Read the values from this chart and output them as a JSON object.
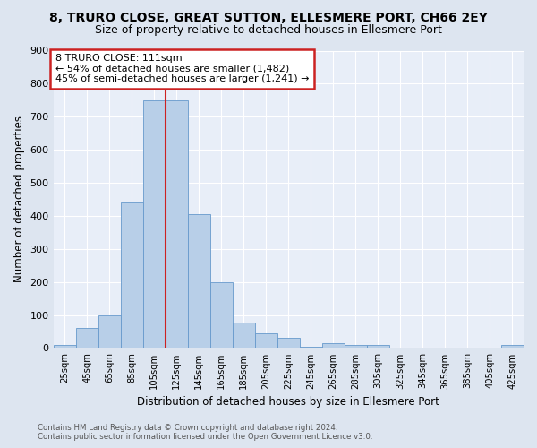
{
  "title1": "8, TRURO CLOSE, GREAT SUTTON, ELLESMERE PORT, CH66 2EY",
  "title2": "Size of property relative to detached houses in Ellesmere Port",
  "xlabel": "Distribution of detached houses by size in Ellesmere Port",
  "ylabel": "Number of detached properties",
  "footnote1": "Contains HM Land Registry data © Crown copyright and database right 2024.",
  "footnote2": "Contains public sector information licensed under the Open Government Licence v3.0.",
  "bar_labels": [
    "25sqm",
    "45sqm",
    "65sqm",
    "85sqm",
    "105sqm",
    "125sqm",
    "145sqm",
    "165sqm",
    "185sqm",
    "205sqm",
    "225sqm",
    "245sqm",
    "265sqm",
    "285sqm",
    "305sqm",
    "325sqm",
    "345sqm",
    "365sqm",
    "385sqm",
    "405sqm",
    "425sqm"
  ],
  "bar_values": [
    10,
    60,
    100,
    440,
    750,
    750,
    405,
    200,
    78,
    44,
    30,
    5,
    15,
    10,
    8,
    0,
    0,
    0,
    0,
    0,
    8
  ],
  "bar_color": "#b8cfe8",
  "bar_edge_color": "#6699cc",
  "vline_color": "#cc2222",
  "annotation_text": "8 TRURO CLOSE: 111sqm\n← 54% of detached houses are smaller (1,482)\n45% of semi-detached houses are larger (1,241) →",
  "annotation_box_color": "white",
  "annotation_box_edge_color": "#cc2222",
  "ylim": [
    0,
    900
  ],
  "yticks": [
    0,
    100,
    200,
    300,
    400,
    500,
    600,
    700,
    800,
    900
  ],
  "bg_color": "#dde5f0",
  "plot_bg_color": "#e8eef8",
  "grid_color": "white",
  "title1_fontsize": 10,
  "title2_fontsize": 9
}
